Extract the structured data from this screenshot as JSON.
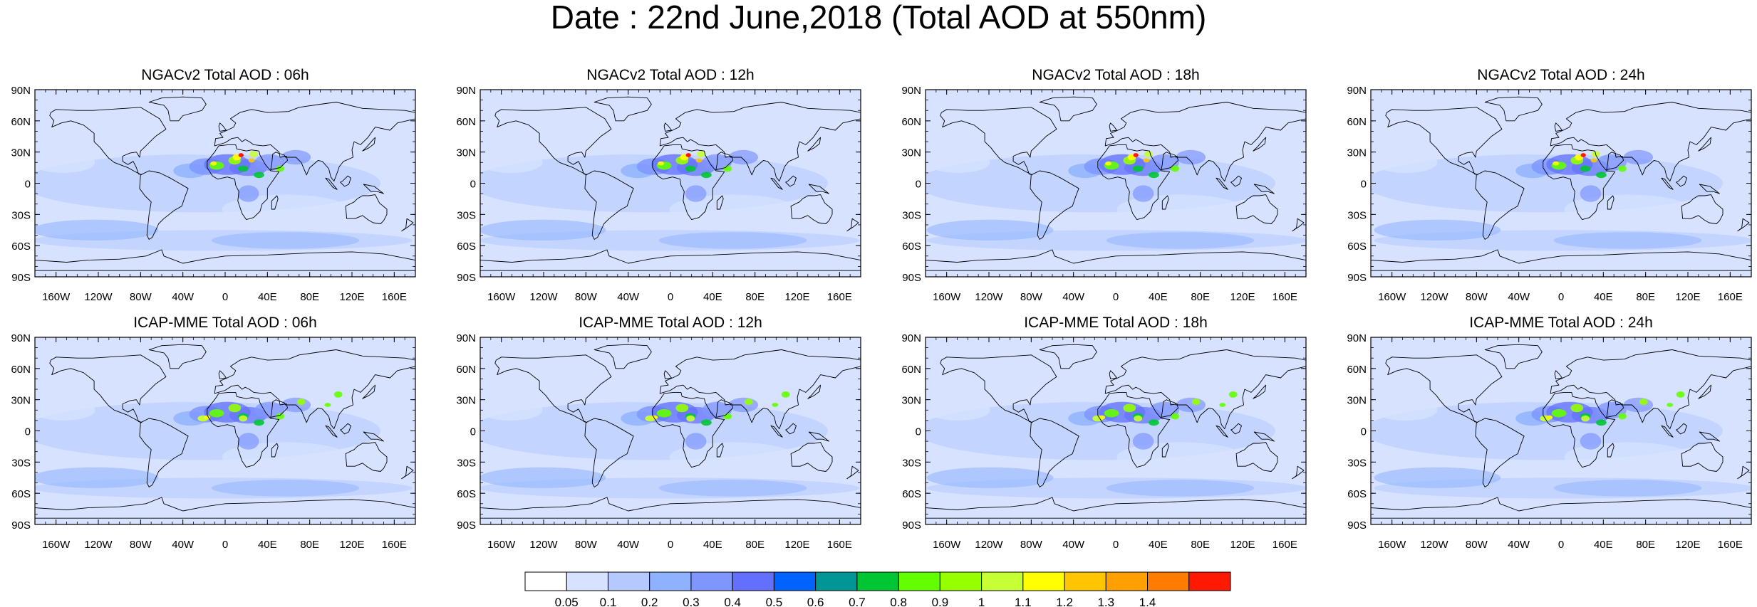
{
  "title": "Date : 22nd June,2018 (Total AOD at 550nm)",
  "rows": [
    {
      "panels": [
        {
          "title": "NGACv2 Total AOD : 06h"
        },
        {
          "title": "NGACv2 Total AOD : 12h"
        },
        {
          "title": "NGACv2 Total AOD : 18h"
        },
        {
          "title": "NGACv2 Total AOD : 24h"
        }
      ]
    },
    {
      "panels": [
        {
          "title": "ICAP-MME Total AOD : 06h"
        },
        {
          "title": "ICAP-MME Total AOD : 12h"
        },
        {
          "title": "ICAP-MME Total AOD : 18h"
        },
        {
          "title": "ICAP-MME Total AOD : 24h"
        }
      ]
    }
  ],
  "lat_labels": [
    "90N",
    "60N",
    "30N",
    "0",
    "30S",
    "60S",
    "90S"
  ],
  "lon_labels": [
    "160W",
    "120W",
    "80W",
    "40W",
    "0",
    "40E",
    "80E",
    "120E",
    "160E"
  ],
  "colorbar": {
    "colors": [
      "#ffffff",
      "#d6e2ff",
      "#b5c9ff",
      "#8eb2ff",
      "#7f96ff",
      "#6370ff",
      "#0063ff",
      "#009696",
      "#00c633",
      "#63ff00",
      "#96ff00",
      "#c6ff33",
      "#ffff00",
      "#ffc600",
      "#ffa000",
      "#ff7c00",
      "#ff1900"
    ],
    "tick_labels": [
      "0.05",
      "0.1",
      "0.2",
      "0.3",
      "0.4",
      "0.5",
      "0.6",
      "0.7",
      "0.8",
      "0.9",
      "1",
      "1.1",
      "1.2",
      "1.3",
      "1.4"
    ]
  },
  "colors": {
    "ocean_light": "#d6e2ff",
    "land_edge": "#000000"
  }
}
